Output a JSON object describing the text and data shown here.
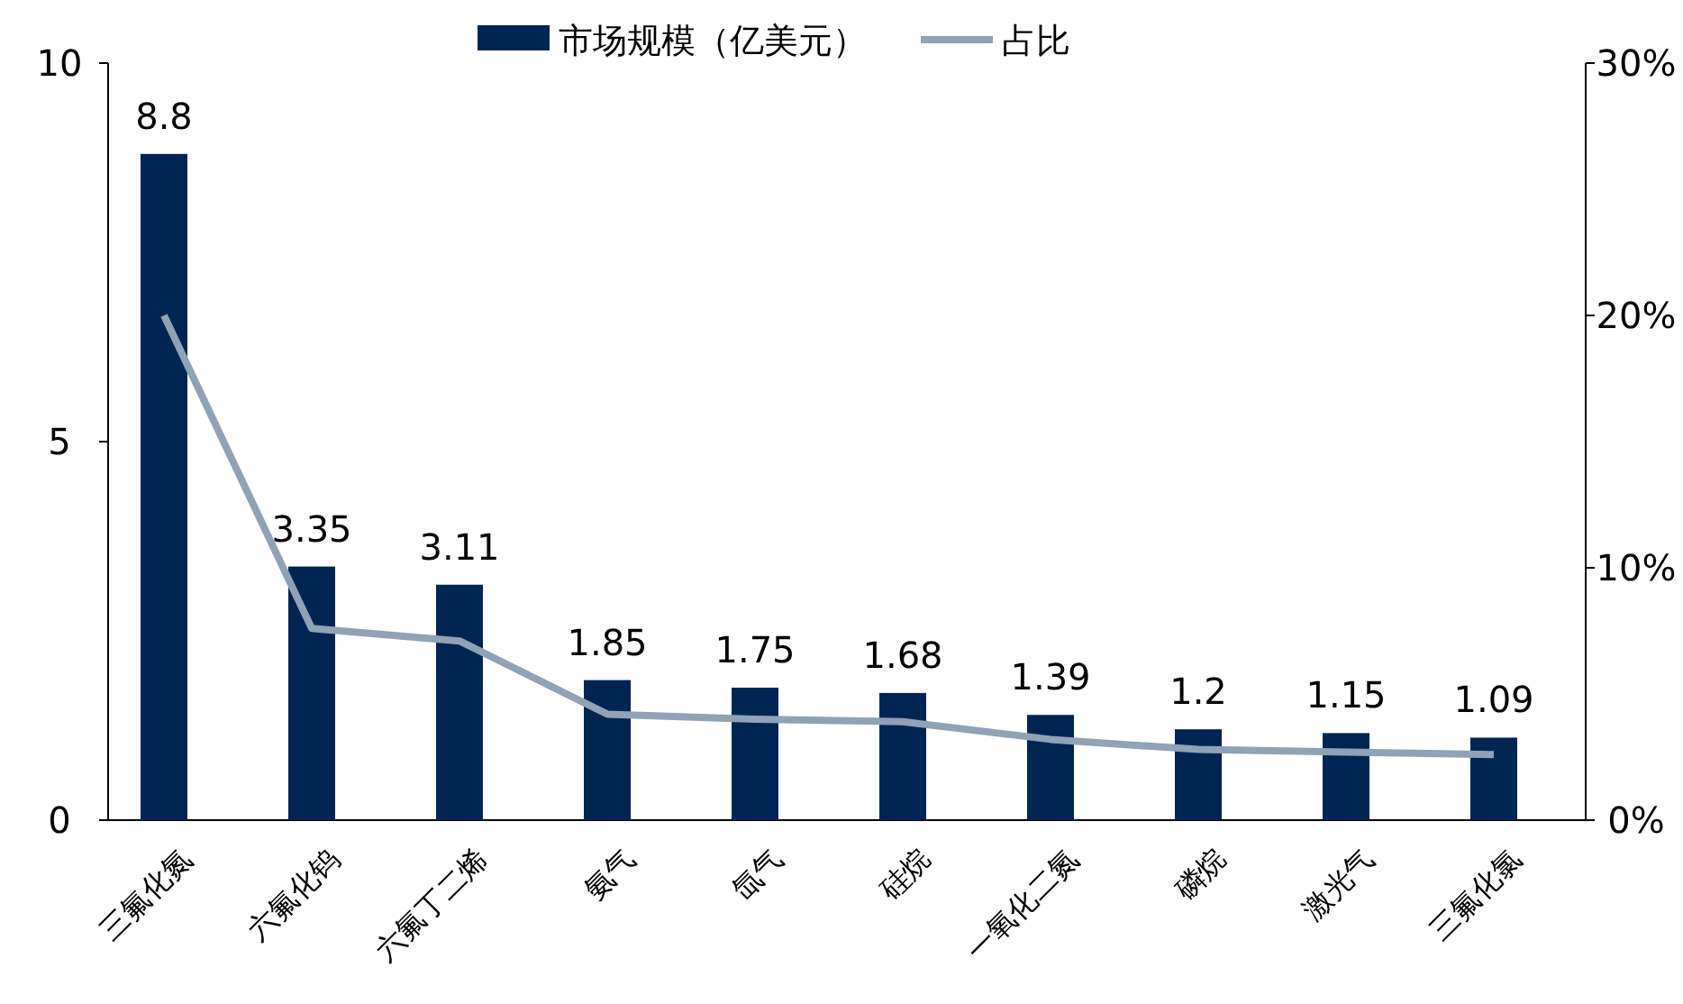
{
  "chart_data": {
    "type": "bar",
    "categories": [
      "三氟化氮",
      "六氟化钨",
      "六氟丁二烯",
      "氨气",
      "氙气",
      "硅烷",
      "一氧化二氮",
      "磷烷",
      "激光气",
      "三氟化氯"
    ],
    "series": [
      {
        "name": "市场规模（亿美元）",
        "color": "#012553",
        "values": [
          8.8,
          3.35,
          3.11,
          1.85,
          1.75,
          1.68,
          1.39,
          1.2,
          1.15,
          1.09
        ],
        "value_labels": [
          "8.8",
          "3.35",
          "3.11",
          "1.85",
          "1.75",
          "1.68",
          "1.39",
          "1.2",
          "1.15",
          "1.09"
        ]
      },
      {
        "name": "占比",
        "type": "line",
        "axis": "y2",
        "color": "#8fa2b6",
        "values": [
          20.0,
          7.6,
          7.1,
          4.2,
          4.0,
          3.9,
          3.2,
          2.8,
          2.7,
          2.6
        ]
      }
    ],
    "ylim": [
      0,
      10
    ],
    "yticks": [
      0,
      5,
      10
    ],
    "y2lim": [
      0,
      30
    ],
    "y2ticks": [
      {
        "value": 0,
        "label": "0%"
      },
      {
        "value": 10,
        "label": "10%"
      },
      {
        "value": 20,
        "label": "20%"
      },
      {
        "value": 30,
        "label": "30%"
      }
    ],
    "legend": "top",
    "grid": false
  }
}
